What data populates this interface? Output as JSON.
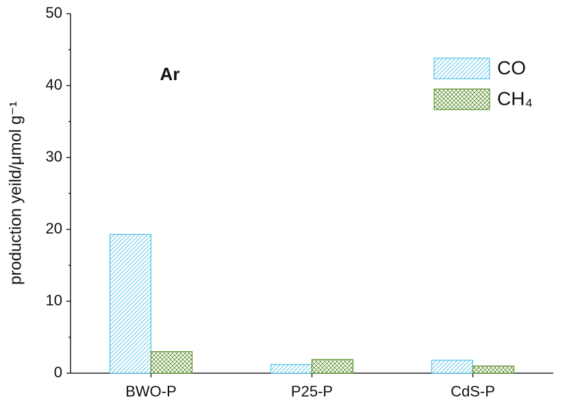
{
  "chart_data": {
    "type": "bar",
    "annotation": "Ar",
    "y_label": "production yeild/μmol g⁻¹",
    "categories": [
      "BWO-P",
      "P25-P",
      "CdS-P"
    ],
    "series": [
      {
        "name": "CO",
        "color": "#4cc0e8",
        "pattern": "hatch",
        "values": [
          19.3,
          1.2,
          1.8
        ]
      },
      {
        "name": "CH₄",
        "color": "#5e9130",
        "pattern": "crosshatch",
        "values": [
          3.0,
          1.9,
          1.0
        ]
      }
    ],
    "ylim": [
      0,
      50
    ],
    "yticks": [
      0,
      10,
      20,
      30,
      40,
      50
    ],
    "legend": "top-right"
  }
}
